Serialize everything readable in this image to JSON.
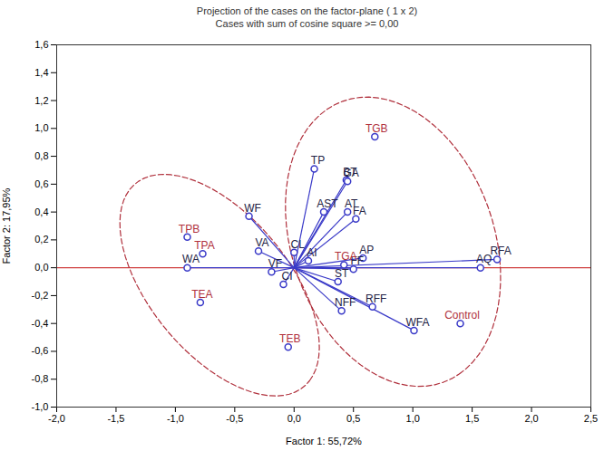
{
  "chart_data": {
    "type": "biplot",
    "title": "Projection of the cases on the factor-plane (  1 x   2)",
    "subtitle": "Cases with sum of cosine square >= 0,00",
    "x_label": "Factor 1: 55,72%",
    "y_label": "Factor 2: 17,95%",
    "xlim": [
      -2.0,
      2.5
    ],
    "ylim": [
      -1.0,
      1.6
    ],
    "xticks": [
      {
        "value": -2.0,
        "label": "-2,0"
      },
      {
        "value": -1.5,
        "label": "-1,5"
      },
      {
        "value": -1.0,
        "label": "-1,0"
      },
      {
        "value": -0.5,
        "label": "-0,5"
      },
      {
        "value": 0.0,
        "label": "0,0"
      },
      {
        "value": 0.5,
        "label": "0,5"
      },
      {
        "value": 1.0,
        "label": "1,0"
      },
      {
        "value": 1.5,
        "label": "1,5"
      },
      {
        "value": 2.0,
        "label": "2,0"
      },
      {
        "value": 2.5,
        "label": "2,5"
      }
    ],
    "yticks": [
      {
        "value": -1.0,
        "label": "-1,0"
      },
      {
        "value": -0.8,
        "label": "-0,8"
      },
      {
        "value": -0.6,
        "label": "-0,6"
      },
      {
        "value": -0.4,
        "label": "-0,4"
      },
      {
        "value": -0.2,
        "label": "-0,2"
      },
      {
        "value": 0.0,
        "label": "0,0"
      },
      {
        "value": 0.2,
        "label": "0,2"
      },
      {
        "value": 0.4,
        "label": "0,4"
      },
      {
        "value": 0.6,
        "label": "0,6"
      },
      {
        "value": 0.8,
        "label": "0,8"
      },
      {
        "value": 1.0,
        "label": "1,0"
      },
      {
        "value": 1.2,
        "label": "1,2"
      },
      {
        "value": 1.4,
        "label": "1,4"
      },
      {
        "value": 1.6,
        "label": "1,6"
      }
    ],
    "grid": false,
    "series": [
      {
        "type": "vector",
        "color": "#3a3ac8",
        "marker": "circle",
        "points": [
          {
            "label": "TP",
            "x": 0.17,
            "y": 0.71
          },
          {
            "label": "BT",
            "x": 0.44,
            "y": 0.63
          },
          {
            "label": "GA",
            "x": 0.45,
            "y": 0.62
          },
          {
            "label": "AST",
            "x": 0.25,
            "y": 0.4
          },
          {
            "label": "AT",
            "x": 0.45,
            "y": 0.4
          },
          {
            "label": "FA",
            "x": 0.52,
            "y": 0.35
          },
          {
            "label": "AP",
            "x": 0.58,
            "y": 0.07
          },
          {
            "label": "FF",
            "x": 0.5,
            "y": -0.01
          },
          {
            "label": "RFF",
            "x": 0.66,
            "y": -0.28
          },
          {
            "label": "ST",
            "x": 0.37,
            "y": -0.1
          },
          {
            "label": "NFF",
            "x": 0.4,
            "y": -0.31
          },
          {
            "label": "WFA",
            "x": 1.01,
            "y": -0.45
          },
          {
            "label": "AQ",
            "x": 1.57,
            "y": 0.0
          },
          {
            "label": "RFA",
            "x": 1.71,
            "y": 0.06
          },
          {
            "label": "CL",
            "x": 0.0,
            "y": 0.11
          },
          {
            "label": "AI",
            "x": 0.12,
            "y": 0.05
          },
          {
            "label": "WF",
            "x": -0.38,
            "y": 0.37
          },
          {
            "label": "VA",
            "x": -0.3,
            "y": 0.12
          },
          {
            "label": "VF",
            "x": -0.19,
            "y": -0.03
          },
          {
            "label": "CI",
            "x": -0.09,
            "y": -0.12
          },
          {
            "label": "WA",
            "x": -0.9,
            "y": 0.0
          }
        ]
      },
      {
        "type": "scatter",
        "color": "#b0303c",
        "marker": "circle",
        "points": [
          {
            "label": "TPB",
            "x": -0.9,
            "y": 0.22
          },
          {
            "label": "TPA",
            "x": -0.77,
            "y": 0.1
          },
          {
            "label": "TEA",
            "x": -0.79,
            "y": -0.25
          },
          {
            "label": "TEB",
            "x": -0.05,
            "y": -0.57
          },
          {
            "label": "TGB",
            "x": 0.68,
            "y": 0.94
          },
          {
            "label": "TGA",
            "x": 0.42,
            "y": 0.02
          },
          {
            "label": "Control",
            "x": 1.4,
            "y": -0.4
          }
        ]
      }
    ]
  }
}
